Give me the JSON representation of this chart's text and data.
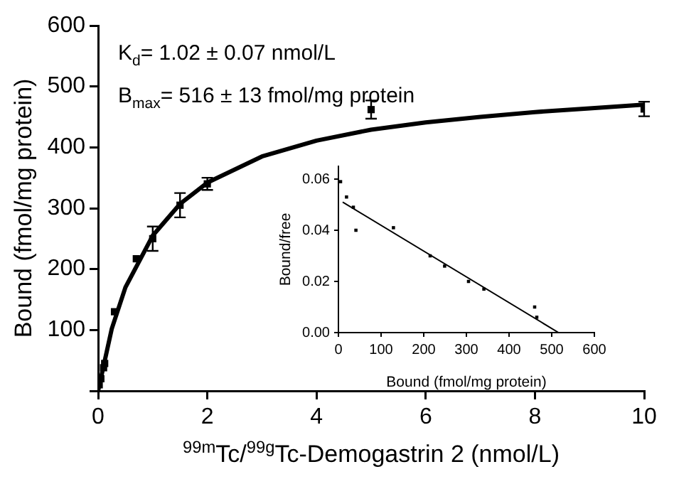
{
  "chart_data": [
    {
      "type": "scatter",
      "xlabel": "$^{99m}$Tc/$^{99g}$Tc-Demogastrin 2 (nmol/L)",
      "ylabel": "Bound (fmol/mg protein)",
      "annotations": [
        "K$_{d}$= 1.02 ± 0.07 nmol/L",
        "B$_{max}$= 516 ± 13 fmol/mg protein"
      ],
      "xlim": [
        0,
        10
      ],
      "xticks": [
        0,
        2,
        4,
        6,
        8,
        10
      ],
      "ylim": [
        0,
        600
      ],
      "yticks": [
        {
          "value": 0,
          "label": null
        },
        100,
        200,
        300,
        400,
        500,
        600
      ],
      "grid": false,
      "legend": false,
      "series": [
        {
          "type": "scatter",
          "color": "#000000",
          "marker": "square",
          "x": [
            0.02,
            0.05,
            0.1,
            0.12,
            0.3,
            0.7,
            1.0,
            1.5,
            2,
            5,
            10
          ],
          "values": [
            10,
            20,
            38,
            45,
            130,
            217,
            250,
            305,
            340,
            462,
            463
          ],
          "errors": [
            null,
            null,
            null,
            null,
            null,
            null,
            20,
            20,
            10,
            15,
            12
          ]
        },
        {
          "type": "line",
          "color": "#000000",
          "marker": "none",
          "x": [
            0,
            0.25,
            0.5,
            1,
            1.5,
            2,
            3,
            4,
            5,
            6,
            7,
            8,
            9,
            10
          ],
          "values": [
            0,
            102,
            170,
            255,
            307,
            342,
            385,
            411,
            429,
            441,
            450,
            458,
            464,
            470
          ]
        }
      ]
    },
    {
      "type": "scatter",
      "xlabel": "Bound (fmol/mg protein)",
      "ylabel": "Bound/free",
      "xlim": [
        0,
        600
      ],
      "xticks": [
        0,
        100,
        200,
        300,
        400,
        500,
        600
      ],
      "ylim": [
        0,
        0.065
      ],
      "yticks": [
        {
          "value": 0,
          "label": "0.00"
        },
        {
          "value": 0.02,
          "label": "0.02"
        },
        {
          "value": 0.04,
          "label": "0.04"
        },
        {
          "value": 0.06,
          "label": "0.06"
        }
      ],
      "grid": false,
      "legend": false,
      "series": [
        {
          "type": "scatter",
          "color": "#000000",
          "marker": "square",
          "x": [
            5,
            19,
            35,
            41,
            129,
            215,
            249,
            305,
            341,
            460,
            465
          ],
          "values": [
            0.059,
            0.053,
            0.049,
            0.04,
            0.041,
            0.03,
            0.026,
            0.02,
            0.017,
            0.01,
            0.006
          ]
        },
        {
          "type": "line",
          "color": "#000000",
          "marker": "none",
          "x": [
            10,
            516
          ],
          "values": [
            0.051,
            0
          ]
        }
      ]
    }
  ]
}
